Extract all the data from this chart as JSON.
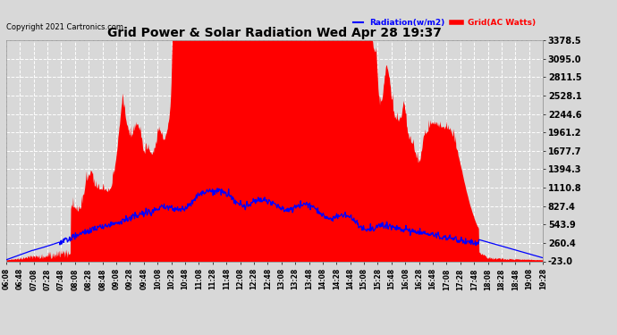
{
  "title": "Grid Power & Solar Radiation Wed Apr 28 19:37",
  "copyright": "Copyright 2021 Cartronics.com",
  "legend_radiation": "Radiation(w/m2)",
  "legend_grid": "Grid(AC Watts)",
  "ylabel_ticks": [
    3378.5,
    3095.0,
    2811.5,
    2528.1,
    2244.6,
    1961.2,
    1677.7,
    1394.3,
    1110.8,
    827.4,
    543.9,
    260.4,
    -23.0
  ],
  "ymin": -23.0,
  "ymax": 3378.5,
  "bg_color": "#d8d8d8",
  "plot_bg_color": "#d8d8d8",
  "grid_color": "#ffffff",
  "title_color": "#000000",
  "copyright_color": "#000000",
  "radiation_color": "#0000ff",
  "grid_power_color": "#ff0000",
  "x_labels": [
    "06:08",
    "06:48",
    "07:08",
    "07:28",
    "07:48",
    "08:08",
    "08:28",
    "08:48",
    "09:08",
    "09:28",
    "09:48",
    "10:08",
    "10:28",
    "10:48",
    "11:08",
    "11:28",
    "11:48",
    "12:08",
    "12:28",
    "12:48",
    "13:08",
    "13:28",
    "13:48",
    "14:08",
    "14:28",
    "14:48",
    "15:08",
    "15:28",
    "15:48",
    "16:08",
    "16:28",
    "16:48",
    "17:08",
    "17:28",
    "17:48",
    "18:08",
    "18:28",
    "18:48",
    "19:08",
    "19:28"
  ]
}
